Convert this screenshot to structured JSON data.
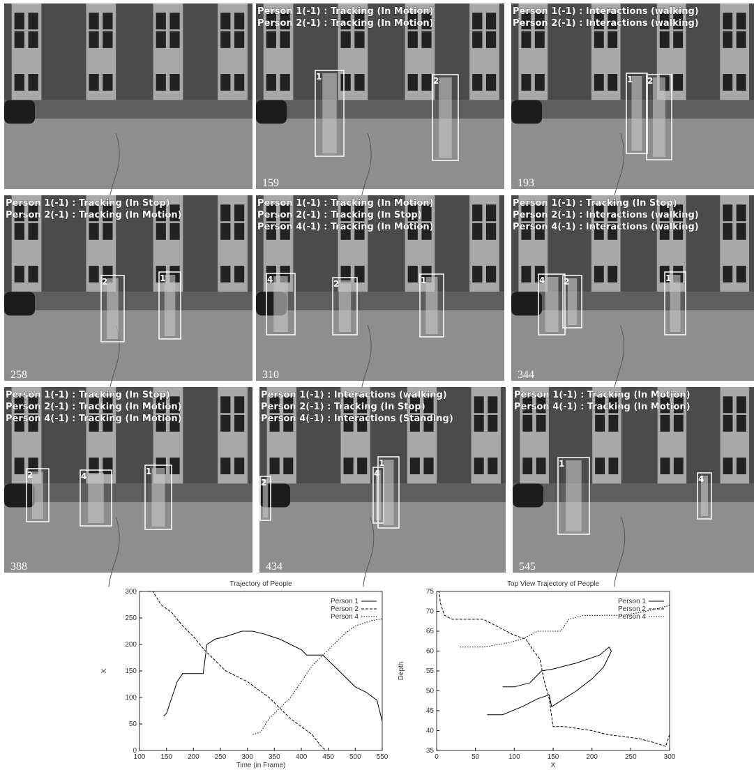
{
  "frames": [
    {},
    {
      "lines": [
        "Person 1(-1) : Tracking (In Motion)",
        "Person 2(-1) : Tracking (In Motion)"
      ],
      "number": "159",
      "boxes": [
        "1",
        "2"
      ]
    },
    {
      "lines": [
        "Person 1(-1) : Interactions (walking)",
        "Person 2(-1) : Interactions (walking)"
      ],
      "number": "193",
      "boxes": [
        "1",
        "2"
      ]
    },
    {
      "lines": [
        "Person 1(-1) : Tracking (In Stop)",
        "Person 2(-1) : Tracking (In Motion)"
      ],
      "number": "258",
      "boxes": [
        "2",
        "1"
      ]
    },
    {
      "lines": [
        "Person 1(-1) : Tracking (In Motion)",
        "Person 2(-1) : Tracking (In Stop)",
        "Person 4(-1) : Tracking (In Motion)"
      ],
      "number": "310",
      "boxes": [
        "4",
        "2",
        "1"
      ]
    },
    {
      "lines": [
        "Person 1(-1) : Tracking (In Stop)",
        "Person 2(-1) : Interactions (walking)",
        "Person 4(-1) : Interactions (walking)"
      ],
      "number": "344",
      "boxes": [
        "4",
        "2",
        "1"
      ]
    },
    {
      "lines": [
        "Person 1(-1) : Tracking (In Stop)",
        "Person 2(-1) : Tracking (In Motion)",
        "Person 4(-1) : Tracking (In Motion)"
      ],
      "number": "388",
      "boxes": [
        "2",
        "4",
        "1"
      ]
    },
    {
      "lines": [
        "Person 1(-1) : Interactions (walking)",
        "Person 2(-1) : Tracking (In Stop)",
        "Person 4(-1) : Interactions (Standing)"
      ],
      "number": "434",
      "boxes": [
        "2",
        "4",
        "1"
      ]
    },
    {
      "lines": [
        "Person 1(-1) : Tracking (In Motion)",
        "Person 4(-1) : Tracking (In Motion)"
      ],
      "number": "545",
      "boxes": [
        "1",
        "4"
      ]
    }
  ],
  "chart_data": [
    {
      "type": "line",
      "title": "Trajectory of People",
      "xlabel": "Time (in Frame)",
      "ylabel": "X",
      "xlim": [
        100,
        550
      ],
      "ylim": [
        0,
        300
      ],
      "xticks": [
        100,
        150,
        200,
        250,
        300,
        350,
        400,
        450,
        500,
        550
      ],
      "yticks": [
        0,
        50,
        100,
        150,
        200,
        250,
        300
      ],
      "legend": "upper right",
      "series": [
        {
          "name": "Person 1",
          "color": "#000000",
          "dash": "solid",
          "x": [
            145,
            150,
            160,
            170,
            180,
            200,
            218,
            225,
            240,
            260,
            290,
            310,
            330,
            360,
            380,
            400,
            410,
            440,
            460,
            480,
            500,
            520,
            540,
            550
          ],
          "values": [
            65,
            70,
            100,
            130,
            145,
            145,
            145,
            200,
            210,
            215,
            225,
            225,
            220,
            210,
            200,
            190,
            180,
            180,
            160,
            140,
            120,
            110,
            95,
            55
          ]
        },
        {
          "name": "Person 2",
          "color": "#000000",
          "dash": "dashed",
          "x": [
            115,
            125,
            140,
            160,
            180,
            200,
            220,
            240,
            260,
            280,
            300,
            320,
            340,
            360,
            380,
            400,
            420,
            435,
            445
          ],
          "values": [
            300,
            300,
            275,
            260,
            235,
            215,
            190,
            170,
            150,
            140,
            130,
            115,
            100,
            80,
            60,
            45,
            30,
            10,
            0
          ]
        },
        {
          "name": "Person 4",
          "color": "#000000",
          "dash": "dotted",
          "x": [
            310,
            325,
            340,
            360,
            380,
            400,
            420,
            440,
            460,
            480,
            500,
            530,
            550
          ],
          "values": [
            30,
            35,
            60,
            80,
            100,
            130,
            160,
            180,
            200,
            220,
            235,
            245,
            248
          ]
        }
      ]
    },
    {
      "type": "line",
      "title": "Top View Trajectory of People",
      "xlabel": "X",
      "ylabel": "Depth",
      "xlim": [
        0,
        300
      ],
      "ylim": [
        35,
        75
      ],
      "xticks": [
        0,
        50,
        100,
        150,
        200,
        250,
        300
      ],
      "yticks": [
        35,
        40,
        45,
        50,
        55,
        60,
        65,
        70,
        75
      ],
      "legend": "upper right",
      "series": [
        {
          "name": "Person 1",
          "color": "#000000",
          "dash": "solid",
          "x": [
            65,
            85,
            110,
            130,
            145,
            148,
            180,
            200,
            215,
            225,
            222,
            210,
            180,
            150,
            135,
            120,
            100,
            85
          ],
          "values": [
            44,
            44,
            46,
            48,
            49,
            46,
            50,
            53,
            56,
            60,
            61,
            59,
            57,
            55.5,
            55,
            52,
            51,
            51
          ]
        },
        {
          "name": "Person 2",
          "color": "#000000",
          "dash": "dashed",
          "x": [
            300,
            295,
            280,
            260,
            240,
            220,
            200,
            165,
            150,
            145,
            138,
            133,
            125,
            115,
            100,
            80,
            60,
            40,
            20,
            10,
            5,
            3
          ],
          "values": [
            39,
            36,
            37,
            38,
            38.5,
            39,
            40,
            41,
            41,
            48,
            53,
            58,
            60,
            63,
            64,
            66,
            68,
            68,
            68,
            69,
            72,
            75
          ]
        },
        {
          "name": "Person 4",
          "color": "#000000",
          "dash": "dotted",
          "x": [
            30,
            60,
            90,
            110,
            130,
            150,
            160,
            170,
            190,
            210,
            240,
            270,
            300
          ],
          "values": [
            61,
            61,
            62,
            63,
            65,
            65,
            65,
            68,
            69,
            69,
            69,
            70,
            71.5
          ]
        }
      ]
    }
  ]
}
